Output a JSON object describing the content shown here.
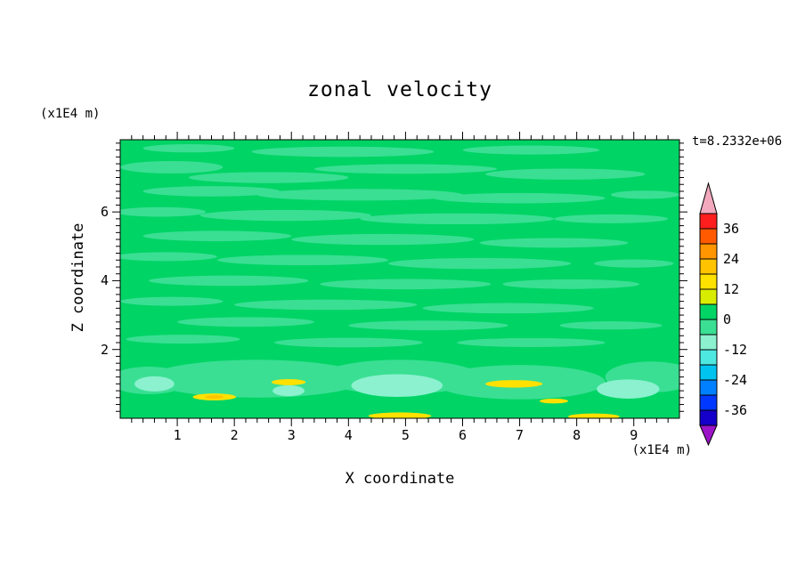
{
  "title": "zonal velocity",
  "timestamp_label": "t=8.2332e+06",
  "axes": {
    "x_label": "X coordinate",
    "x_units": "(x1E4 m)",
    "y_label": "Z coordinate",
    "y_units": "(x1E4 m)",
    "x_ticks": [
      1,
      2,
      3,
      4,
      5,
      6,
      7,
      8,
      9
    ],
    "y_ticks": [
      2,
      4,
      6
    ]
  },
  "chart_data": {
    "type": "heatmap",
    "subtype": "filled-contour",
    "title": "zonal velocity",
    "xlabel": "X coordinate",
    "x_units_label": "(x1E4 m)",
    "ylabel": "Z coordinate",
    "y_units_label": "(x1E4 m)",
    "annotation": "t=8.2332e+06",
    "x_range": [
      0,
      9.8
    ],
    "y_range": [
      0,
      8.1
    ],
    "x_major_ticks": [
      1,
      2,
      3,
      4,
      5,
      6,
      7,
      8,
      9
    ],
    "y_major_ticks": [
      2,
      4,
      6
    ],
    "ticks": {
      "x_minor_step": 0.2,
      "y_minor_step": 0.2
    },
    "contour_interval": 6,
    "base_value": 3,
    "colorbar": {
      "range": [
        -42,
        42
      ],
      "labels": [
        36,
        24,
        12,
        0,
        -12,
        -24,
        -36
      ],
      "over_color": "#F2A9BE",
      "under_color": "#9C14C8",
      "segments": [
        {
          "min": 36,
          "max": 42,
          "color": "#FF1E1E"
        },
        {
          "min": 30,
          "max": 36,
          "color": "#FF5A00"
        },
        {
          "min": 24,
          "max": 30,
          "color": "#FF9600"
        },
        {
          "min": 18,
          "max": 24,
          "color": "#FFC300"
        },
        {
          "min": 12,
          "max": 18,
          "color": "#FFE100"
        },
        {
          "min": 6,
          "max": 12,
          "color": "#D8EC00"
        },
        {
          "min": 0,
          "max": 6,
          "color": "#00D465"
        },
        {
          "min": -6,
          "max": 0,
          "color": "#3ADF93"
        },
        {
          "min": -12,
          "max": -6,
          "color": "#8BF1CF"
        },
        {
          "min": -18,
          "max": -12,
          "color": "#4DE8E0"
        },
        {
          "min": -24,
          "max": -18,
          "color": "#00C3F0"
        },
        {
          "min": -30,
          "max": -24,
          "color": "#0080FF"
        },
        {
          "min": -36,
          "max": -30,
          "color": "#0038FF"
        },
        {
          "min": -42,
          "max": -36,
          "color": "#1400C8"
        }
      ]
    },
    "field_summary": "Field mostly between -6 and +6; streaky horizontal bands of -6..0 across the domain, aquamarine patches of -12..-6 near the lower boundary, isolated +12..+24 spots near the bottom",
    "features": [
      [
        1.2,
        7.85,
        0.8,
        0.12,
        -3
      ],
      [
        3.9,
        7.75,
        1.6,
        0.15,
        -3
      ],
      [
        7.2,
        7.8,
        1.2,
        0.13,
        -3
      ],
      [
        0.9,
        7.3,
        0.9,
        0.18,
        -3
      ],
      [
        2.6,
        7.0,
        1.4,
        0.16,
        -3
      ],
      [
        5.0,
        7.25,
        1.6,
        0.14,
        -3
      ],
      [
        7.8,
        7.1,
        1.4,
        0.16,
        -3
      ],
      [
        1.6,
        6.6,
        1.2,
        0.15,
        -3
      ],
      [
        4.2,
        6.5,
        1.8,
        0.17,
        -3
      ],
      [
        7.0,
        6.4,
        1.5,
        0.15,
        -3
      ],
      [
        9.2,
        6.5,
        0.6,
        0.12,
        -3
      ],
      [
        0.7,
        6.0,
        0.8,
        0.14,
        -3
      ],
      [
        2.9,
        5.9,
        1.5,
        0.16,
        -3
      ],
      [
        5.9,
        5.8,
        1.7,
        0.16,
        -3
      ],
      [
        8.6,
        5.8,
        1.0,
        0.13,
        -3
      ],
      [
        1.7,
        5.3,
        1.3,
        0.15,
        -3
      ],
      [
        4.6,
        5.2,
        1.6,
        0.16,
        -3
      ],
      [
        7.6,
        5.1,
        1.3,
        0.14,
        -3
      ],
      [
        0.8,
        4.7,
        0.9,
        0.13,
        -3
      ],
      [
        3.2,
        4.6,
        1.5,
        0.15,
        -3
      ],
      [
        6.3,
        4.5,
        1.6,
        0.16,
        -3
      ],
      [
        9.0,
        4.5,
        0.7,
        0.12,
        -3
      ],
      [
        1.9,
        4.0,
        1.4,
        0.15,
        -3
      ],
      [
        5.0,
        3.9,
        1.5,
        0.15,
        -3
      ],
      [
        7.9,
        3.9,
        1.2,
        0.14,
        -3
      ],
      [
        0.9,
        3.4,
        0.9,
        0.13,
        -3
      ],
      [
        3.6,
        3.3,
        1.6,
        0.15,
        -3
      ],
      [
        6.8,
        3.2,
        1.5,
        0.15,
        -3
      ],
      [
        2.2,
        2.8,
        1.2,
        0.14,
        -3
      ],
      [
        5.4,
        2.7,
        1.4,
        0.14,
        -3
      ],
      [
        8.6,
        2.7,
        0.9,
        0.12,
        -3
      ],
      [
        1.1,
        2.3,
        1.0,
        0.13,
        -3
      ],
      [
        4.0,
        2.2,
        1.3,
        0.14,
        -3
      ],
      [
        7.2,
        2.2,
        1.3,
        0.13,
        -3
      ],
      [
        0.5,
        1.1,
        0.7,
        0.4,
        -3
      ],
      [
        2.4,
        1.15,
        1.9,
        0.55,
        -3
      ],
      [
        4.9,
        1.2,
        1.4,
        0.5,
        -3
      ],
      [
        7.0,
        1.05,
        1.5,
        0.5,
        -3
      ],
      [
        9.3,
        1.2,
        0.8,
        0.45,
        -3
      ],
      [
        0.6,
        1.0,
        0.35,
        0.22,
        -9
      ],
      [
        2.95,
        0.8,
        0.28,
        0.16,
        -9
      ],
      [
        4.85,
        0.95,
        0.8,
        0.33,
        -9
      ],
      [
        8.9,
        0.85,
        0.55,
        0.28,
        -9
      ],
      [
        1.65,
        0.62,
        0.38,
        0.1,
        15
      ],
      [
        2.95,
        1.05,
        0.3,
        0.09,
        15
      ],
      [
        6.9,
        1.0,
        0.5,
        0.11,
        15
      ],
      [
        7.6,
        0.5,
        0.25,
        0.07,
        15
      ],
      [
        4.9,
        0.07,
        0.55,
        0.1,
        15
      ],
      [
        8.3,
        0.05,
        0.45,
        0.09,
        15
      ],
      [
        1.65,
        0.62,
        0.16,
        0.05,
        21
      ]
    ]
  }
}
